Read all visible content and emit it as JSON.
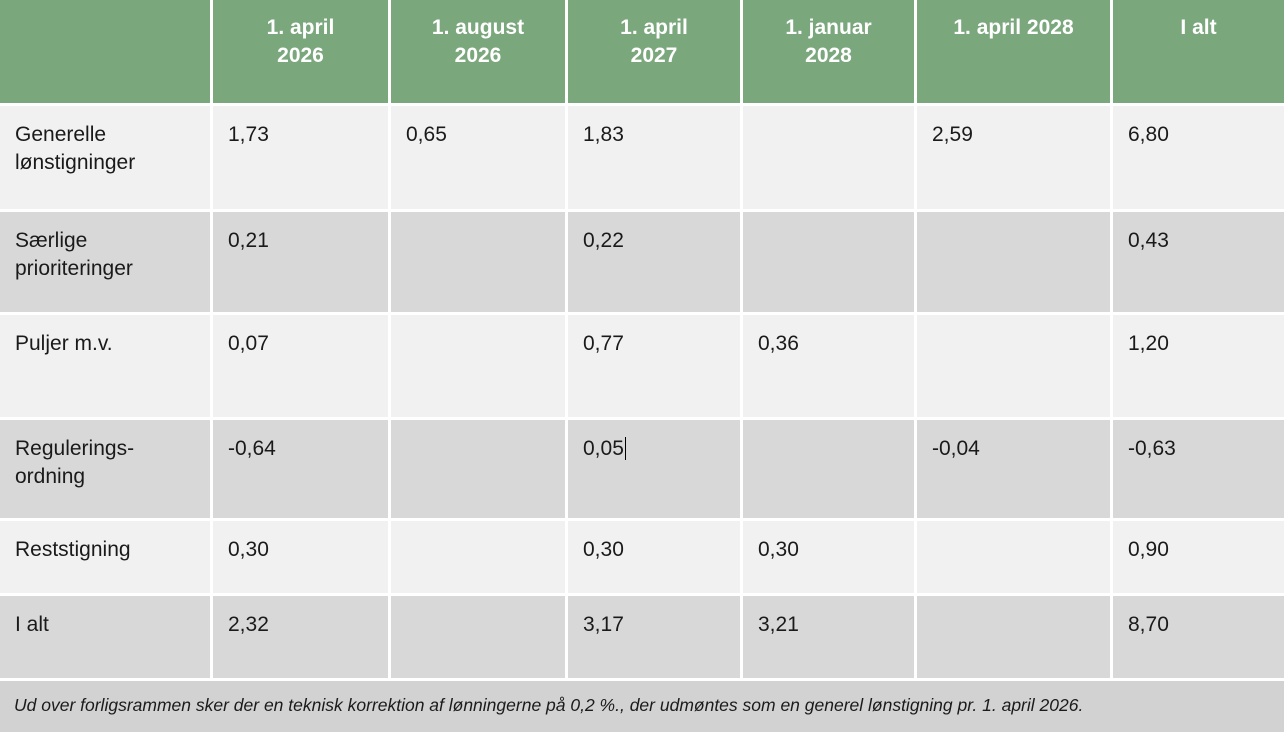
{
  "table": {
    "columns": [
      "",
      "1. april 2026",
      "1. august 2026",
      "1. april 2027",
      "1. januar 2028",
      "1. april 2028",
      "I alt"
    ],
    "rows": [
      {
        "label": "Generelle lønstigninger",
        "values": [
          "1,73",
          "0,65",
          "1,83",
          "",
          "2,59",
          "6,80"
        ]
      },
      {
        "label": "Særlige prioriteringer",
        "values": [
          "0,21",
          "",
          "0,22",
          "",
          "",
          "0,43"
        ]
      },
      {
        "label": "Puljer m.v.",
        "values": [
          "0,07",
          "",
          "0,77",
          "0,36",
          "",
          "1,20"
        ]
      },
      {
        "label": "Regulerings-ordning",
        "values": [
          "-0,64",
          "",
          "0,05",
          "",
          "-0,04",
          "-0,63"
        ]
      },
      {
        "label": "Reststigning",
        "values": [
          "0,30",
          "",
          "0,30",
          "0,30",
          "",
          "0,90"
        ]
      },
      {
        "label": "I alt",
        "values": [
          "2,32",
          "",
          "3,17",
          "3,21",
          "",
          "8,70"
        ]
      }
    ],
    "footnote": "Ud over forligsrammen sker der en teknisk korrektion af lønningerne på 0,2 %., der udmøntes som en generel lønstigning pr. 1. april 2026."
  },
  "colors": {
    "header_bg": "#7BA77D",
    "header_text": "#FFFFFF",
    "row_light": "#F1F1F1",
    "row_dark": "#D8D8D8",
    "footnote_bg": "#D2D2D2",
    "body_text": "#1A1A1A"
  }
}
